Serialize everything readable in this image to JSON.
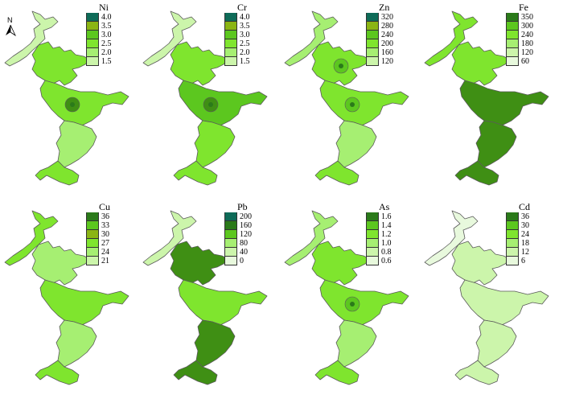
{
  "north_arrow": {
    "label": "N",
    "icon": "north-arrow-icon"
  },
  "colors": {
    "c0": "#e8f9dd",
    "c1": "#ccf5ab",
    "c2": "#a6ef72",
    "c3": "#7fe52e",
    "c4": "#5cc71f",
    "c5": "#8bb514",
    "c6": "#3f8f14",
    "c7": "#2b7a1a",
    "c8": "#0e6b58",
    "outline": "#5a5a5a"
  },
  "panels": [
    {
      "id": "ni",
      "title": "Ni",
      "legend": [
        {
          "label": "4.0",
          "color": "#0e6b58"
        },
        {
          "label": "3.5",
          "color": "#8bb514"
        },
        {
          "label": "3.0",
          "color": "#5cc71f"
        },
        {
          "label": "2.5",
          "color": "#7fe52e"
        },
        {
          "label": "2.0",
          "color": "#a6ef72"
        },
        {
          "label": "1.5",
          "color": "#ccf5ab"
        }
      ],
      "zones": {
        "north": "c1",
        "upper": "c3",
        "middle": "c3",
        "lower": "c2",
        "south": "c3"
      },
      "hotspots": [
        {
          "zone": "middle",
          "color": "c6"
        }
      ]
    },
    {
      "id": "cr",
      "title": "Cr",
      "legend": [
        {
          "label": "4.0",
          "color": "#0e6b58"
        },
        {
          "label": "3.5",
          "color": "#8bb514"
        },
        {
          "label": "3.0",
          "color": "#5cc71f"
        },
        {
          "label": "2.5",
          "color": "#7fe52e"
        },
        {
          "label": "2.0",
          "color": "#a6ef72"
        },
        {
          "label": "1.5",
          "color": "#ccf5ab"
        }
      ],
      "zones": {
        "north": "c1",
        "upper": "c3",
        "middle": "c4",
        "lower": "c3",
        "south": "c3"
      },
      "hotspots": [
        {
          "zone": "middle",
          "color": "c6"
        }
      ]
    },
    {
      "id": "zn",
      "title": "Zn",
      "legend": [
        {
          "label": "320",
          "color": "#0e6b58"
        },
        {
          "label": "280",
          "color": "#8bb514"
        },
        {
          "label": "240",
          "color": "#5cc71f"
        },
        {
          "label": "200",
          "color": "#7fe52e"
        },
        {
          "label": "160",
          "color": "#a6ef72"
        },
        {
          "label": "120",
          "color": "#ccf5ab"
        }
      ],
      "zones": {
        "north": "c2",
        "upper": "c3",
        "middle": "c3",
        "lower": "c2",
        "south": "c3"
      },
      "hotspots": [
        {
          "zone": "middle",
          "color": "c4"
        },
        {
          "zone": "upper",
          "color": "c4"
        }
      ]
    },
    {
      "id": "fe",
      "title": "Fe",
      "legend": [
        {
          "label": "350",
          "color": "#2b7a1a"
        },
        {
          "label": "300",
          "color": "#5cc71f"
        },
        {
          "label": "240",
          "color": "#7fe52e"
        },
        {
          "label": "180",
          "color": "#a6ef72"
        },
        {
          "label": "120",
          "color": "#ccf5ab"
        },
        {
          "label": "60",
          "color": "#e8f9dd"
        }
      ],
      "zones": {
        "north": "c3",
        "upper": "c3",
        "middle": "c6",
        "lower": "c6",
        "south": "c6"
      },
      "hotspots": []
    },
    {
      "id": "cu",
      "title": "Cu",
      "legend": [
        {
          "label": "36",
          "color": "#2b7a1a"
        },
        {
          "label": "33",
          "color": "#5cc71f"
        },
        {
          "label": "30",
          "color": "#8bb514"
        },
        {
          "label": "27",
          "color": "#7fe52e"
        },
        {
          "label": "24",
          "color": "#a6ef72"
        },
        {
          "label": "21",
          "color": "#ccf5ab"
        }
      ],
      "zones": {
        "north": "c3",
        "upper": "c2",
        "middle": "c3",
        "lower": "c2",
        "south": "c3"
      },
      "hotspots": []
    },
    {
      "id": "pb",
      "title": "Pb",
      "legend": [
        {
          "label": "200",
          "color": "#0e6b58"
        },
        {
          "label": "160",
          "color": "#2b7a1a"
        },
        {
          "label": "120",
          "color": "#5cc71f"
        },
        {
          "label": "80",
          "color": "#a6ef72"
        },
        {
          "label": "40",
          "color": "#ccf5ab"
        },
        {
          "label": "0",
          "color": "#e8f9dd"
        }
      ],
      "zones": {
        "north": "c1",
        "upper": "c6",
        "middle": "c3",
        "lower": "c6",
        "south": "c6"
      },
      "hotspots": []
    },
    {
      "id": "as",
      "title": "As",
      "legend": [
        {
          "label": "1.6",
          "color": "#2b7a1a"
        },
        {
          "label": "1.4",
          "color": "#5cc71f"
        },
        {
          "label": "1.2",
          "color": "#7fe52e"
        },
        {
          "label": "1.0",
          "color": "#a6ef72"
        },
        {
          "label": "0.8",
          "color": "#ccf5ab"
        },
        {
          "label": "0.6",
          "color": "#e8f9dd"
        }
      ],
      "zones": {
        "north": "c2",
        "upper": "c3",
        "middle": "c3",
        "lower": "c2",
        "south": "c3"
      },
      "hotspots": [
        {
          "zone": "middle",
          "color": "c4"
        }
      ]
    },
    {
      "id": "cd",
      "title": "Cd",
      "legend": [
        {
          "label": "36",
          "color": "#2b7a1a"
        },
        {
          "label": "30",
          "color": "#5cc71f"
        },
        {
          "label": "24",
          "color": "#7fe52e"
        },
        {
          "label": "18",
          "color": "#a6ef72"
        },
        {
          "label": "12",
          "color": "#ccf5ab"
        },
        {
          "label": "6",
          "color": "#e8f9dd"
        }
      ],
      "zones": {
        "north": "c0",
        "upper": "c1",
        "middle": "c1",
        "lower": "c1",
        "south": "c1"
      },
      "hotspots": []
    }
  ]
}
